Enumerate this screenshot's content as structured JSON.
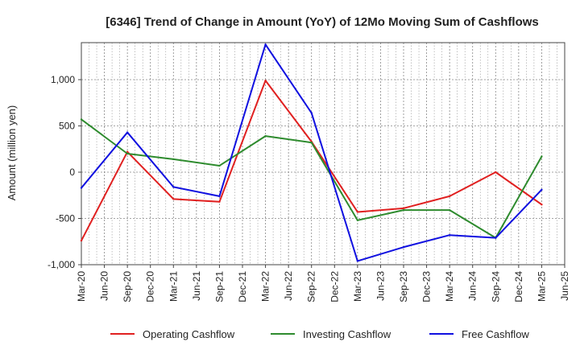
{
  "chart_data": {
    "type": "line",
    "title": "[6346]  Trend of Change in Amount (YoY) of 12Mo Moving Sum of Cashflows",
    "xlabel": "",
    "ylabel": "Amount (million yen)",
    "ylim": [
      -1000,
      1400
    ],
    "yticks": [
      -1000,
      -500,
      0,
      500,
      1000
    ],
    "ytick_labels": [
      "-1,000",
      "-500",
      "0",
      "500",
      "1,000"
    ],
    "categories": [
      "Mar-20",
      "Jun-20",
      "Sep-20",
      "Dec-20",
      "Mar-21",
      "Jun-21",
      "Sep-21",
      "Dec-21",
      "Mar-22",
      "Jun-22",
      "Sep-22",
      "Dec-22",
      "Mar-23",
      "Jun-23",
      "Sep-23",
      "Dec-23",
      "Mar-24",
      "Jun-24",
      "Sep-24",
      "Dec-24",
      "Mar-25",
      "Jun-25"
    ],
    "grid": true,
    "legend_position": "bottom",
    "series": [
      {
        "name": "Operating Cashflow",
        "color": "#e02020",
        "x": [
          "Mar-20",
          "Sep-20",
          "Mar-21",
          "Sep-21",
          "Mar-22",
          "Sep-22",
          "Mar-23",
          "Sep-23",
          "Mar-24",
          "Sep-24",
          "Mar-25"
        ],
        "values": [
          -740,
          220,
          -290,
          -320,
          990,
          330,
          -430,
          -390,
          -260,
          0,
          -350
        ]
      },
      {
        "name": "Investing Cashflow",
        "color": "#2e8b2e",
        "x": [
          "Mar-20",
          "Sep-20",
          "Mar-21",
          "Sep-21",
          "Mar-22",
          "Sep-22",
          "Mar-23",
          "Sep-23",
          "Mar-24",
          "Sep-24",
          "Mar-25"
        ],
        "values": [
          570,
          200,
          140,
          70,
          390,
          320,
          -520,
          -410,
          -410,
          -710,
          170
        ]
      },
      {
        "name": "Free Cashflow",
        "color": "#1010e0",
        "x": [
          "Mar-20",
          "Sep-20",
          "Mar-21",
          "Sep-21",
          "Mar-22",
          "Sep-22",
          "Mar-23",
          "Sep-23",
          "Mar-24",
          "Sep-24",
          "Mar-25"
        ],
        "values": [
          -170,
          430,
          -160,
          -260,
          1380,
          640,
          -960,
          -810,
          -680,
          -710,
          -190
        ]
      }
    ]
  }
}
